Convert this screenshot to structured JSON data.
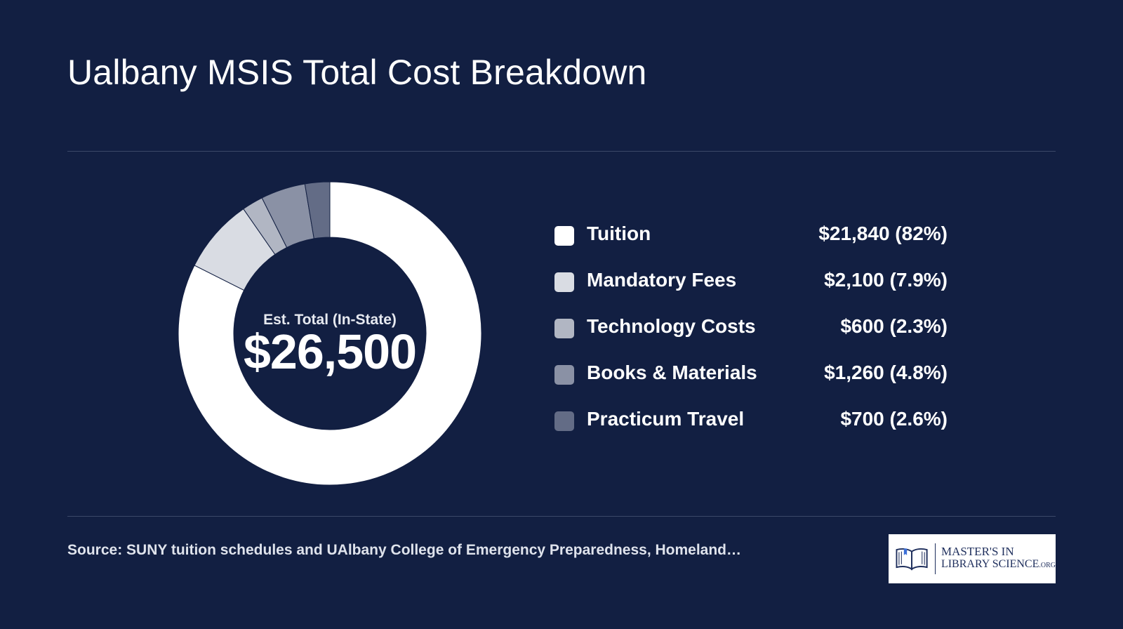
{
  "header": {
    "title": "Ualbany MSIS Total Cost Breakdown"
  },
  "center": {
    "label": "Est. Total (In-State)",
    "value": "$26,500"
  },
  "chart_data": {
    "type": "pie",
    "donut": true,
    "total": 26500,
    "categories": [
      "Tuition",
      "Mandatory Fees",
      "Technology Costs",
      "Books & Materials",
      "Practicum Travel"
    ],
    "values": [
      21840,
      2100,
      600,
      1260,
      700
    ],
    "display": [
      "$21,840 (82%)",
      "$2,100 (7.9%)",
      "$600 (2.3%)",
      "$1,260 (4.8%)",
      "$700 (2.6%)"
    ],
    "colors": [
      "#ffffff",
      "#d9dce3",
      "#b1b6c3",
      "#8a91a5",
      "#636c86"
    ],
    "legend_placement": "right"
  },
  "footer": {
    "source": "Source: SUNY tuition schedules and UAlbany College of Emergency Preparedness, Homeland…",
    "logo": {
      "line1": "MASTER'S IN",
      "line2": "LIBRARY SCIENCE",
      "suffix": ".ORG"
    }
  }
}
